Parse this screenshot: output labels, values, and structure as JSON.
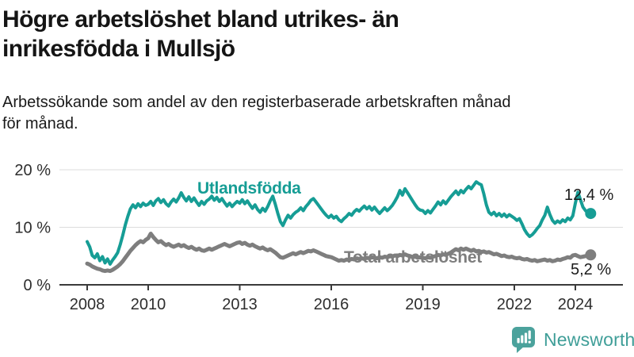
{
  "header": {
    "title_lines": [
      "Högre arbetslöshet bland utrikes- än",
      "inrikesfödda i Mullsjö"
    ],
    "subtitle_lines": [
      "Arbetssökande som andel av den registerbaserade arbetskraften månad",
      "för månad."
    ]
  },
  "footer": {
    "brand": "Newsworthy",
    "logo_icon": "bar-chart-speech-bubble-icon"
  },
  "colors": {
    "accent_teal": "#169d95",
    "line_gray": "#7e7e7e",
    "grid": "#dcdcdc",
    "axis": "#3a3a3a",
    "tick_text": "#2e2e2e",
    "brand_teal": "#3f9e98",
    "brand_icon_fill": "#4ba29c"
  },
  "chart_data": {
    "type": "line",
    "title": "Högre arbetslöshet bland utrikes- än inrikesfödda i Mullsjö",
    "subtitle": "Arbetssökande som andel av den registerbaserade arbetskraften månad för månad.",
    "xlabel": "",
    "ylabel": "",
    "y_unit": "%",
    "ylim": [
      0,
      20
    ],
    "grid": "horizontal",
    "frequency": "monthly",
    "start_year": 2008,
    "y_ticks": [
      {
        "label": "0 %",
        "value": 0
      },
      {
        "label": "10 %",
        "value": 10
      },
      {
        "label": "20 %",
        "value": 20
      }
    ],
    "x_ticks": [
      {
        "label": "2008",
        "year": 2008
      },
      {
        "label": "2010",
        "year": 2010
      },
      {
        "label": "2013",
        "year": 2013
      },
      {
        "label": "2016",
        "year": 2016
      },
      {
        "label": "2019",
        "year": 2019
      },
      {
        "label": "2022",
        "year": 2022
      },
      {
        "label": "2024",
        "year": 2024
      }
    ],
    "series": [
      {
        "name": "Utlandsfödda",
        "color": "#169d95",
        "end_label": "12,4 %",
        "end_value": 12.4,
        "values": [
          7.5,
          6.6,
          5.1,
          4.7,
          5.4,
          4.2,
          4.9,
          3.8,
          4.5,
          3.6,
          4.3,
          4.9,
          5.6,
          7.0,
          8.6,
          10.4,
          11.9,
          13.2,
          13.9,
          13.4,
          14.1,
          13.6,
          14.2,
          13.8,
          14.0,
          14.5,
          13.8,
          14.6,
          15.0,
          14.3,
          14.8,
          14.1,
          13.7,
          14.4,
          14.9,
          14.4,
          15.1,
          16.0,
          15.2,
          14.6,
          15.3,
          14.5,
          15.1,
          14.4,
          13.8,
          14.5,
          14.0,
          14.6,
          14.9,
          15.4,
          14.7,
          15.2,
          14.5,
          15.0,
          14.3,
          13.7,
          14.2,
          13.6,
          14.1,
          14.5,
          14.2,
          14.8,
          14.1,
          14.6,
          13.9,
          13.3,
          13.9,
          13.1,
          12.6,
          13.3,
          12.8,
          13.6,
          14.6,
          15.4,
          14.0,
          12.4,
          11.0,
          10.3,
          11.3,
          12.1,
          11.6,
          12.2,
          12.6,
          12.9,
          13.4,
          12.9,
          13.6,
          14.1,
          14.7,
          15.0,
          14.4,
          13.8,
          13.2,
          12.6,
          12.1,
          11.7,
          12.1,
          11.6,
          11.9,
          11.3,
          11.0,
          11.5,
          11.9,
          12.4,
          12.1,
          12.7,
          13.1,
          12.8,
          13.3,
          13.7,
          13.2,
          13.6,
          13.0,
          13.5,
          12.9,
          12.4,
          12.9,
          13.4,
          12.9,
          13.3,
          13.8,
          14.5,
          15.3,
          16.4,
          15.6,
          16.7,
          16.0,
          15.3,
          14.6,
          13.9,
          13.3,
          13.0,
          12.9,
          12.4,
          12.9,
          12.5,
          13.1,
          13.7,
          14.4,
          13.9,
          14.6,
          14.1,
          14.7,
          15.3,
          15.8,
          16.3,
          15.7,
          16.4,
          16.0,
          16.6,
          17.1,
          16.7,
          17.3,
          17.9,
          17.6,
          17.4,
          15.8,
          13.9,
          12.6,
          12.2,
          12.6,
          12.0,
          12.4,
          11.9,
          12.3,
          11.8,
          12.2,
          11.9,
          11.6,
          11.2,
          11.5,
          10.6,
          9.6,
          8.9,
          8.4,
          8.7,
          9.2,
          9.8,
          10.3,
          11.3,
          12.1,
          13.5,
          12.2,
          11.2,
          10.7,
          11.1,
          10.8,
          11.3,
          11.0,
          11.6,
          11.3,
          12.0,
          14.2,
          16.1,
          14.8,
          13.5,
          12.9,
          12.5,
          12.4
        ]
      },
      {
        "name": "Total arbetslöshet",
        "color": "#7e7e7e",
        "end_label": "5,2 %",
        "end_value": 5.2,
        "values": [
          3.7,
          3.5,
          3.2,
          3.0,
          2.8,
          2.7,
          2.5,
          2.4,
          2.5,
          2.4,
          2.6,
          2.9,
          3.2,
          3.6,
          4.1,
          4.7,
          5.3,
          5.9,
          6.4,
          6.9,
          7.3,
          7.6,
          7.4,
          7.8,
          8.1,
          8.9,
          8.3,
          7.8,
          7.4,
          7.6,
          7.2,
          6.9,
          7.1,
          6.8,
          6.6,
          6.8,
          7.0,
          6.7,
          6.9,
          6.6,
          6.4,
          6.6,
          6.3,
          6.1,
          6.3,
          6.0,
          5.9,
          6.1,
          6.3,
          6.1,
          6.3,
          6.5,
          6.7,
          6.9,
          7.1,
          6.9,
          6.7,
          6.9,
          7.1,
          7.3,
          7.4,
          7.1,
          7.3,
          7.0,
          6.8,
          7.0,
          6.7,
          6.5,
          6.3,
          6.5,
          6.2,
          6.0,
          6.2,
          5.9,
          5.6,
          5.2,
          4.8,
          4.7,
          4.9,
          5.1,
          5.3,
          5.5,
          5.3,
          5.5,
          5.7,
          5.5,
          5.7,
          5.9,
          5.8,
          6.0,
          5.8,
          5.6,
          5.4,
          5.2,
          5.0,
          4.9,
          4.8,
          4.6,
          4.4,
          4.2,
          4.3,
          4.2,
          4.4,
          4.3,
          4.5,
          4.4,
          4.6,
          4.5,
          4.6,
          4.5,
          4.7,
          4.6,
          4.8,
          4.7,
          4.6,
          4.8,
          4.7,
          4.9,
          4.8,
          5.0,
          4.9,
          5.1,
          5.0,
          5.2,
          5.1,
          5.3,
          5.1,
          5.0,
          4.8,
          4.9,
          4.7,
          4.8,
          4.7,
          4.6,
          4.8,
          4.7,
          4.9,
          5.0,
          5.2,
          5.1,
          5.3,
          5.2,
          5.4,
          5.6,
          5.9,
          6.2,
          6.0,
          6.3,
          6.1,
          6.3,
          6.1,
          5.9,
          6.1,
          5.8,
          5.9,
          5.7,
          5.8,
          5.6,
          5.7,
          5.5,
          5.3,
          5.4,
          5.2,
          5.0,
          5.1,
          4.9,
          4.8,
          4.9,
          4.7,
          4.6,
          4.7,
          4.5,
          4.4,
          4.5,
          4.3,
          4.2,
          4.3,
          4.1,
          4.2,
          4.3,
          4.4,
          4.2,
          4.3,
          4.1,
          4.2,
          4.4,
          4.3,
          4.5,
          4.6,
          4.8,
          4.7,
          5.1,
          5.2,
          5.0,
          4.8,
          4.9,
          5.0,
          5.1,
          5.2
        ]
      }
    ]
  }
}
